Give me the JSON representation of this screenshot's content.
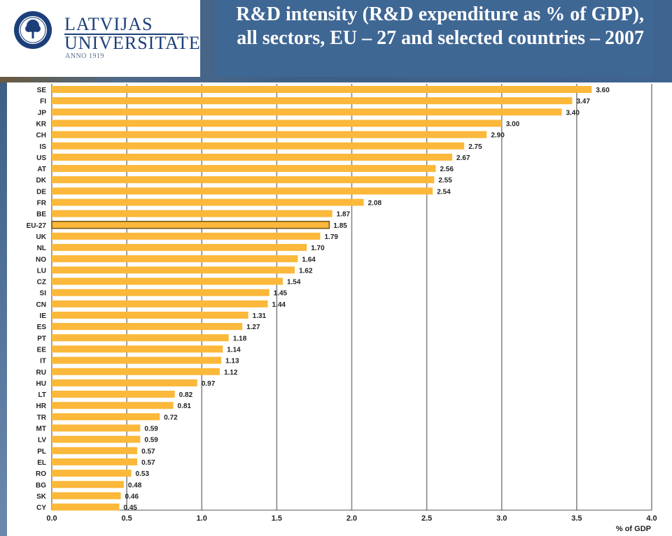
{
  "header": {
    "title": "R&D intensity (R&D expenditure as % of GDP), all sectors, EU – 27 and selected countries – 2007"
  },
  "logo": {
    "line1": "LATVIJAS",
    "line2": "UNIVERSITATE",
    "anno": "ANNO 1919"
  },
  "colors": {
    "bar": "#fbb83a",
    "highlight_bar_border": "#7a5a1a",
    "header_blue": "#3f6794",
    "logo_text": "#1c3f7a",
    "grid": "#888888"
  },
  "chart_data": {
    "type": "bar",
    "orientation": "horizontal",
    "categories": [
      "SE",
      "FI",
      "JP",
      "KR",
      "CH",
      "IS",
      "US",
      "AT",
      "DK",
      "DE",
      "FR",
      "BE",
      "EU-27",
      "UK",
      "NL",
      "NO",
      "LU",
      "CZ",
      "SI",
      "CN",
      "IE",
      "ES",
      "PT",
      "EE",
      "IT",
      "RU",
      "HU",
      "LT",
      "HR",
      "TR",
      "MT",
      "LV",
      "PL",
      "EL",
      "RO",
      "BG",
      "SK",
      "CY"
    ],
    "values": [
      3.6,
      3.47,
      3.4,
      3.0,
      2.9,
      2.75,
      2.67,
      2.56,
      2.55,
      2.54,
      2.08,
      1.87,
      1.85,
      1.79,
      1.7,
      1.64,
      1.62,
      1.54,
      1.45,
      1.44,
      1.31,
      1.27,
      1.18,
      1.14,
      1.13,
      1.12,
      0.97,
      0.82,
      0.81,
      0.72,
      0.59,
      0.59,
      0.57,
      0.57,
      0.53,
      0.48,
      0.46,
      0.45
    ],
    "value_labels": [
      "3.60",
      "3.47",
      "3.40",
      "3.00",
      "2.90",
      "2.75",
      "2.67",
      "2.56",
      "2.55",
      "2.54",
      "2.08",
      "1.87",
      "1.85",
      "1.79",
      "1.70",
      "1.64",
      "1.62",
      "1.54",
      "1.45",
      "1.44",
      "1.31",
      "1.27",
      "1.18",
      "1.14",
      "1.13",
      "1.12",
      "0.97",
      "0.82",
      "0.81",
      "0.72",
      "0.59",
      "0.59",
      "0.57",
      "0.57",
      "0.53",
      "0.48",
      "0.46",
      "0.45"
    ],
    "highlight": "EU-27",
    "xlim": [
      0,
      4.0
    ],
    "xticks": [
      "0.0",
      "0.5",
      "1.0",
      "1.5",
      "2.0",
      "2.5",
      "3.0",
      "3.5",
      "4.0"
    ],
    "xlabel": "% of GDP",
    "grid": true
  }
}
